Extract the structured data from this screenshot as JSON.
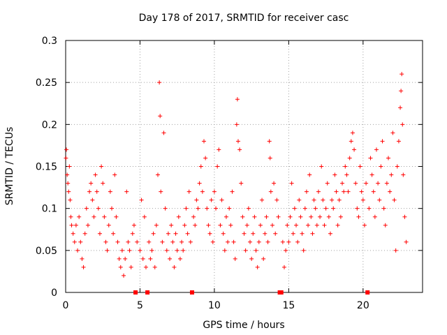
{
  "chart_data": {
    "type": "scatter",
    "title": "Day 178 of 2017, SRMTID for receiver casc",
    "xlabel": "GPS time / hours",
    "ylabel": "SRMTID / TECUs",
    "xlim": [
      0,
      24
    ],
    "ylim": [
      0,
      0.3
    ],
    "x_ticks": [
      0,
      5,
      10,
      15,
      20
    ],
    "x_tick_labels": [
      "0",
      "5",
      "10",
      "15",
      "20"
    ],
    "y_ticks": [
      0,
      0.05,
      0.1,
      0.15,
      0.2,
      0.25,
      0.3
    ],
    "y_tick_labels": [
      "0",
      "0.05",
      "0.1",
      "0.15",
      "0.2",
      "0.25",
      "0.3"
    ],
    "grid": true,
    "marker": "+",
    "color": "#ff0000",
    "series_name": "SRMTID",
    "gap_markers_x": [
      4.7,
      5.5,
      8.5,
      14.4,
      14.5,
      20.3
    ],
    "points": [
      [
        0.02,
        0.16
      ],
      [
        0.05,
        0.17
      ],
      [
        0.1,
        0.14
      ],
      [
        0.15,
        0.13
      ],
      [
        0.2,
        0.12
      ],
      [
        0.25,
        0.15
      ],
      [
        0.3,
        0.11
      ],
      [
        0.35,
        0.09
      ],
      [
        0.4,
        0.08
      ],
      [
        0.5,
        0.07
      ],
      [
        0.6,
        0.06
      ],
      [
        0.7,
        0.08
      ],
      [
        0.8,
        0.05
      ],
      [
        0.9,
        0.09
      ],
      [
        1.0,
        0.06
      ],
      [
        1.1,
        0.04
      ],
      [
        1.2,
        0.03
      ],
      [
        1.3,
        0.07
      ],
      [
        1.4,
        0.1
      ],
      [
        1.5,
        0.08
      ],
      [
        1.6,
        0.12
      ],
      [
        1.7,
        0.13
      ],
      [
        1.8,
        0.11
      ],
      [
        1.9,
        0.09
      ],
      [
        2.0,
        0.14
      ],
      [
        2.1,
        0.12
      ],
      [
        2.2,
        0.1
      ],
      [
        2.3,
        0.07
      ],
      [
        2.4,
        0.15
      ],
      [
        2.5,
        0.13
      ],
      [
        2.6,
        0.09
      ],
      [
        2.7,
        0.06
      ],
      [
        2.8,
        0.05
      ],
      [
        2.9,
        0.08
      ],
      [
        3.0,
        0.12
      ],
      [
        3.1,
        0.1
      ],
      [
        3.2,
        0.07
      ],
      [
        3.3,
        0.14
      ],
      [
        3.4,
        0.09
      ],
      [
        3.5,
        0.06
      ],
      [
        3.6,
        0.04
      ],
      [
        3.7,
        0.03
      ],
      [
        3.8,
        0.05
      ],
      [
        3.9,
        0.02
      ],
      [
        4.0,
        0.04
      ],
      [
        4.1,
        0.12
      ],
      [
        4.2,
        0.06
      ],
      [
        4.3,
        0.05
      ],
      [
        4.4,
        0.03
      ],
      [
        4.5,
        0.07
      ],
      [
        4.6,
        0.08
      ],
      [
        4.8,
        0.06
      ],
      [
        5.0,
        0.05
      ],
      [
        5.1,
        0.11
      ],
      [
        5.2,
        0.04
      ],
      [
        5.3,
        0.09
      ],
      [
        5.4,
        0.03
      ],
      [
        5.6,
        0.06
      ],
      [
        5.7,
        0.04
      ],
      [
        5.8,
        0.05
      ],
      [
        5.9,
        0.07
      ],
      [
        6.0,
        0.03
      ],
      [
        6.1,
        0.08
      ],
      [
        6.2,
        0.14
      ],
      [
        6.3,
        0.25
      ],
      [
        6.35,
        0.21
      ],
      [
        6.4,
        0.12
      ],
      [
        6.5,
        0.06
      ],
      [
        6.6,
        0.19
      ],
      [
        6.7,
        0.1
      ],
      [
        6.8,
        0.05
      ],
      [
        6.9,
        0.07
      ],
      [
        7.0,
        0.04
      ],
      [
        7.1,
        0.08
      ],
      [
        7.2,
        0.06
      ],
      [
        7.3,
        0.03
      ],
      [
        7.4,
        0.07
      ],
      [
        7.5,
        0.05
      ],
      [
        7.6,
        0.09
      ],
      [
        7.7,
        0.04
      ],
      [
        7.8,
        0.06
      ],
      [
        7.9,
        0.05
      ],
      [
        8.0,
        0.08
      ],
      [
        8.1,
        0.1
      ],
      [
        8.2,
        0.07
      ],
      [
        8.3,
        0.12
      ],
      [
        8.4,
        0.06
      ],
      [
        8.6,
        0.09
      ],
      [
        8.7,
        0.08
      ],
      [
        8.8,
        0.11
      ],
      [
        8.9,
        0.1
      ],
      [
        9.0,
        0.13
      ],
      [
        9.1,
        0.15
      ],
      [
        9.2,
        0.12
      ],
      [
        9.3,
        0.18
      ],
      [
        9.4,
        0.16
      ],
      [
        9.5,
        0.1
      ],
      [
        9.6,
        0.08
      ],
      [
        9.7,
        0.07
      ],
      [
        9.8,
        0.11
      ],
      [
        9.9,
        0.06
      ],
      [
        10.0,
        0.12
      ],
      [
        10.1,
        0.1
      ],
      [
        10.2,
        0.15
      ],
      [
        10.3,
        0.17
      ],
      [
        10.4,
        0.08
      ],
      [
        10.5,
        0.11
      ],
      [
        10.6,
        0.07
      ],
      [
        10.7,
        0.05
      ],
      [
        10.8,
        0.09
      ],
      [
        10.9,
        0.06
      ],
      [
        11.0,
        0.1
      ],
      [
        11.1,
        0.08
      ],
      [
        11.2,
        0.12
      ],
      [
        11.3,
        0.06
      ],
      [
        11.4,
        0.04
      ],
      [
        11.5,
        0.2
      ],
      [
        11.55,
        0.23
      ],
      [
        11.6,
        0.18
      ],
      [
        11.7,
        0.17
      ],
      [
        11.8,
        0.13
      ],
      [
        11.9,
        0.09
      ],
      [
        12.0,
        0.07
      ],
      [
        12.1,
        0.05
      ],
      [
        12.2,
        0.08
      ],
      [
        12.3,
        0.1
      ],
      [
        12.4,
        0.06
      ],
      [
        12.5,
        0.04
      ],
      [
        12.6,
        0.07
      ],
      [
        12.7,
        0.09
      ],
      [
        12.8,
        0.05
      ],
      [
        12.9,
        0.03
      ],
      [
        13.0,
        0.06
      ],
      [
        13.1,
        0.08
      ],
      [
        13.2,
        0.11
      ],
      [
        13.3,
        0.04
      ],
      [
        13.4,
        0.07
      ],
      [
        13.5,
        0.09
      ],
      [
        13.6,
        0.06
      ],
      [
        13.7,
        0.18
      ],
      [
        13.75,
        0.16
      ],
      [
        13.8,
        0.12
      ],
      [
        13.9,
        0.08
      ],
      [
        14.0,
        0.13
      ],
      [
        14.1,
        0.07
      ],
      [
        14.2,
        0.11
      ],
      [
        14.3,
        0.09
      ],
      [
        14.6,
        0.06
      ],
      [
        14.7,
        0.03
      ],
      [
        14.8,
        0.05
      ],
      [
        14.9,
        0.08
      ],
      [
        15.0,
        0.06
      ],
      [
        15.1,
        0.09
      ],
      [
        15.2,
        0.13
      ],
      [
        15.3,
        0.07
      ],
      [
        15.4,
        0.1
      ],
      [
        15.5,
        0.08
      ],
      [
        15.6,
        0.06
      ],
      [
        15.7,
        0.11
      ],
      [
        15.8,
        0.09
      ],
      [
        15.9,
        0.07
      ],
      [
        16.0,
        0.05
      ],
      [
        16.1,
        0.1
      ],
      [
        16.2,
        0.12
      ],
      [
        16.3,
        0.08
      ],
      [
        16.4,
        0.14
      ],
      [
        16.5,
        0.09
      ],
      [
        16.6,
        0.07
      ],
      [
        16.7,
        0.11
      ],
      [
        16.8,
        0.1
      ],
      [
        16.9,
        0.08
      ],
      [
        17.0,
        0.12
      ],
      [
        17.1,
        0.09
      ],
      [
        17.2,
        0.15
      ],
      [
        17.3,
        0.11
      ],
      [
        17.4,
        0.08
      ],
      [
        17.5,
        0.1
      ],
      [
        17.6,
        0.13
      ],
      [
        17.7,
        0.09
      ],
      [
        17.8,
        0.07
      ],
      [
        17.9,
        0.11
      ],
      [
        18.0,
        0.1
      ],
      [
        18.1,
        0.14
      ],
      [
        18.2,
        0.12
      ],
      [
        18.3,
        0.08
      ],
      [
        18.4,
        0.11
      ],
      [
        18.5,
        0.09
      ],
      [
        18.6,
        0.13
      ],
      [
        18.7,
        0.12
      ],
      [
        18.8,
        0.15
      ],
      [
        18.9,
        0.14
      ],
      [
        19.0,
        0.12
      ],
      [
        19.1,
        0.16
      ],
      [
        19.2,
        0.18
      ],
      [
        19.3,
        0.19
      ],
      [
        19.4,
        0.17
      ],
      [
        19.5,
        0.13
      ],
      [
        19.6,
        0.1
      ],
      [
        19.7,
        0.09
      ],
      [
        19.8,
        0.15
      ],
      [
        19.9,
        0.12
      ],
      [
        20.0,
        0.11
      ],
      [
        20.1,
        0.08
      ],
      [
        20.2,
        0.13
      ],
      [
        20.4,
        0.1
      ],
      [
        20.5,
        0.16
      ],
      [
        20.6,
        0.14
      ],
      [
        20.7,
        0.12
      ],
      [
        20.8,
        0.09
      ],
      [
        20.9,
        0.17
      ],
      [
        21.0,
        0.13
      ],
      [
        21.1,
        0.11
      ],
      [
        21.2,
        0.15
      ],
      [
        21.3,
        0.18
      ],
      [
        21.4,
        0.1
      ],
      [
        21.5,
        0.08
      ],
      [
        21.6,
        0.13
      ],
      [
        21.7,
        0.16
      ],
      [
        21.8,
        0.12
      ],
      [
        21.9,
        0.14
      ],
      [
        22.0,
        0.19
      ],
      [
        22.1,
        0.11
      ],
      [
        22.2,
        0.05
      ],
      [
        22.3,
        0.15
      ],
      [
        22.4,
        0.18
      ],
      [
        22.5,
        0.22
      ],
      [
        22.55,
        0.24
      ],
      [
        22.6,
        0.26
      ],
      [
        22.65,
        0.2
      ],
      [
        22.7,
        0.14
      ],
      [
        22.8,
        0.09
      ],
      [
        22.9,
        0.06
      ]
    ]
  }
}
